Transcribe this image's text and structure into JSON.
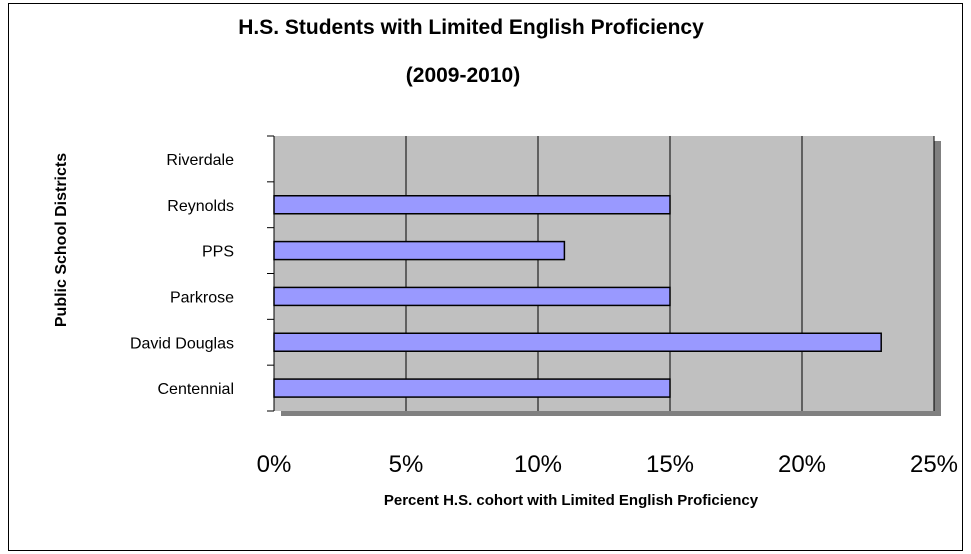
{
  "chart_data": {
    "type": "bar",
    "orientation": "horizontal",
    "title": "H.S. Students with Limited English Proficiency",
    "subtitle": "(2009-2010)",
    "xlabel": "Percent H.S. cohort with Limited English Proficiency",
    "ylabel": "Public School Districts",
    "categories": [
      "Centennial",
      "David Douglas",
      "Parkrose",
      "PPS",
      "Reynolds",
      "Riverdale"
    ],
    "values": [
      0.15,
      0.23,
      0.15,
      0.11,
      0.15,
      0
    ],
    "xlim": [
      0,
      0.25
    ],
    "xticks": [
      "0%",
      "5%",
      "10%",
      "15%",
      "20%",
      "25%"
    ],
    "grid": "vertical",
    "legend": "none",
    "colors": {
      "bar_fill": "#9999ff",
      "bar_stroke": "#000000",
      "plot_bg": "#c0c0c0",
      "grid": "#000000"
    }
  }
}
